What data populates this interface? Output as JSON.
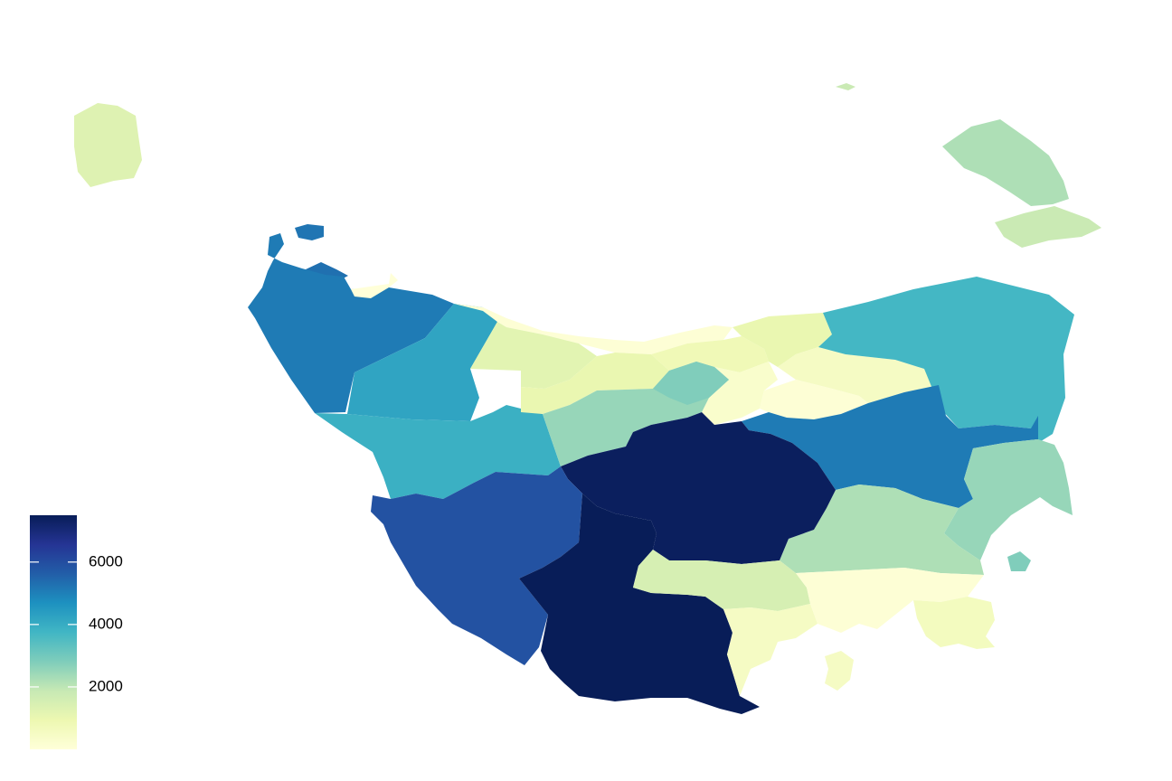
{
  "map": {
    "type": "choropleth",
    "color_scale": {
      "name": "YlGnBu",
      "stops": [
        "#ffffd9",
        "#edf8b1",
        "#c7e9b4",
        "#7fcdbb",
        "#41b6c4",
        "#1d91c0",
        "#225ea8",
        "#253494",
        "#081d58"
      ],
      "domain": [
        0,
        7500
      ]
    },
    "legend": {
      "placement": "bottom-left",
      "ticks": [
        {
          "value": 2000,
          "label": "2000"
        },
        {
          "value": 4000,
          "label": "4000"
        },
        {
          "value": 6000,
          "label": "6000"
        }
      ]
    },
    "regions": [
      {
        "id": "king-island",
        "value": 1300
      },
      {
        "id": "hunter-island",
        "value": 5200
      },
      {
        "id": "robbins-island",
        "value": 5300
      },
      {
        "id": "far-northwest",
        "value": 5100
      },
      {
        "id": "smithton-coast",
        "value": 0
      },
      {
        "id": "north-central-west",
        "value": 4200
      },
      {
        "id": "northwest-mid",
        "value": 4000
      },
      {
        "id": "north-coast-strip",
        "value": 100
      },
      {
        "id": "north-central-a",
        "value": 1200
      },
      {
        "id": "north-central-b",
        "value": 1000
      },
      {
        "id": "north-central-c",
        "value": 800
      },
      {
        "id": "tamar-west",
        "value": 300
      },
      {
        "id": "tamar-east",
        "value": 500
      },
      {
        "id": "northeast-coast-west",
        "value": 1000
      },
      {
        "id": "launceston",
        "value": 100
      },
      {
        "id": "central-north-a",
        "value": 2500
      },
      {
        "id": "central-north-b",
        "value": 2800
      },
      {
        "id": "west-coast-north",
        "value": 3900
      },
      {
        "id": "central-highlands",
        "value": 7400
      },
      {
        "id": "west-coast-south",
        "value": 5900
      },
      {
        "id": "southwest",
        "value": 7500
      },
      {
        "id": "northern-midlands",
        "value": 5100
      },
      {
        "id": "northeast",
        "value": 3700
      },
      {
        "id": "east-coast",
        "value": 2500
      },
      {
        "id": "southern-midlands",
        "value": 2200
      },
      {
        "id": "derwent-valley",
        "value": 1500
      },
      {
        "id": "huon-valley",
        "value": 500
      },
      {
        "id": "hobart-area",
        "value": 100
      },
      {
        "id": "tasman",
        "value": 600
      },
      {
        "id": "flinders-island",
        "value": 2200
      },
      {
        "id": "cape-barren-island",
        "value": 1800
      },
      {
        "id": "maria-island",
        "value": 2800
      },
      {
        "id": "bruny-island",
        "value": 500
      }
    ]
  }
}
